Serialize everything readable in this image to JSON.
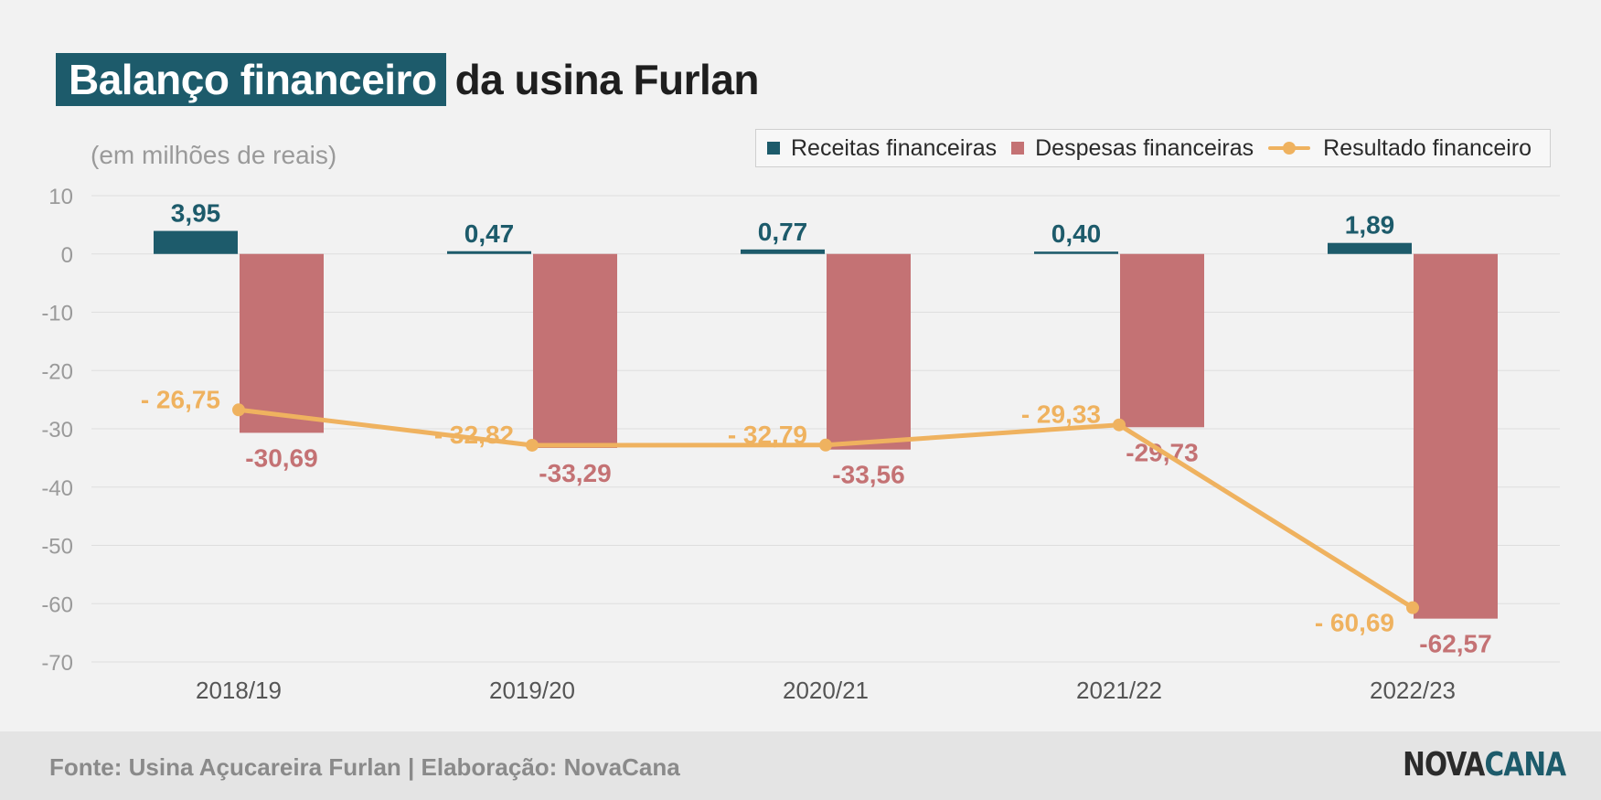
{
  "title": {
    "highlight": "Balanço financeiro",
    "rest": "da usina Furlan"
  },
  "subtitle": "(em milhões de reais)",
  "footer": {
    "source": "Fonte: Usina Açucareira Furlan | Elaboração: NovaCana"
  },
  "logo": {
    "part1": "NOVA",
    "part2": "CANA"
  },
  "colors": {
    "receitas": "#1d5b6b",
    "despesas": "#c47274",
    "resultado": "#efb25f",
    "axis": "#9a9a9a",
    "grid": "#dedede"
  },
  "chart_data": {
    "type": "bar",
    "categories": [
      "2018/19",
      "2019/20",
      "2020/21",
      "2021/22",
      "2022/23"
    ],
    "ylim": [
      -70,
      10
    ],
    "yticks": [
      10,
      0,
      -10,
      -20,
      -30,
      -40,
      -50,
      -60,
      -70
    ],
    "grid": true,
    "legend_position": "top-right",
    "series": [
      {
        "name": "Receitas financeiras",
        "type": "bar",
        "values": [
          3.95,
          0.47,
          0.77,
          0.4,
          1.89
        ],
        "labels": [
          "3,95",
          "0,47",
          "0,77",
          "0,40",
          "1,89"
        ]
      },
      {
        "name": "Despesas financeiras",
        "type": "bar",
        "values": [
          -30.69,
          -33.29,
          -33.56,
          -29.73,
          -62.57
        ],
        "labels": [
          "-30,69",
          "-33,29",
          "-33,56",
          "-29,73",
          "-62,57"
        ]
      },
      {
        "name": "Resultado financeiro",
        "type": "line",
        "values": [
          -26.75,
          -32.82,
          -32.79,
          -29.33,
          -60.69
        ],
        "labels": [
          "- 26,75",
          "- 32,82",
          "- 32,79",
          "- 29,33",
          "- 60,69"
        ]
      }
    ]
  }
}
